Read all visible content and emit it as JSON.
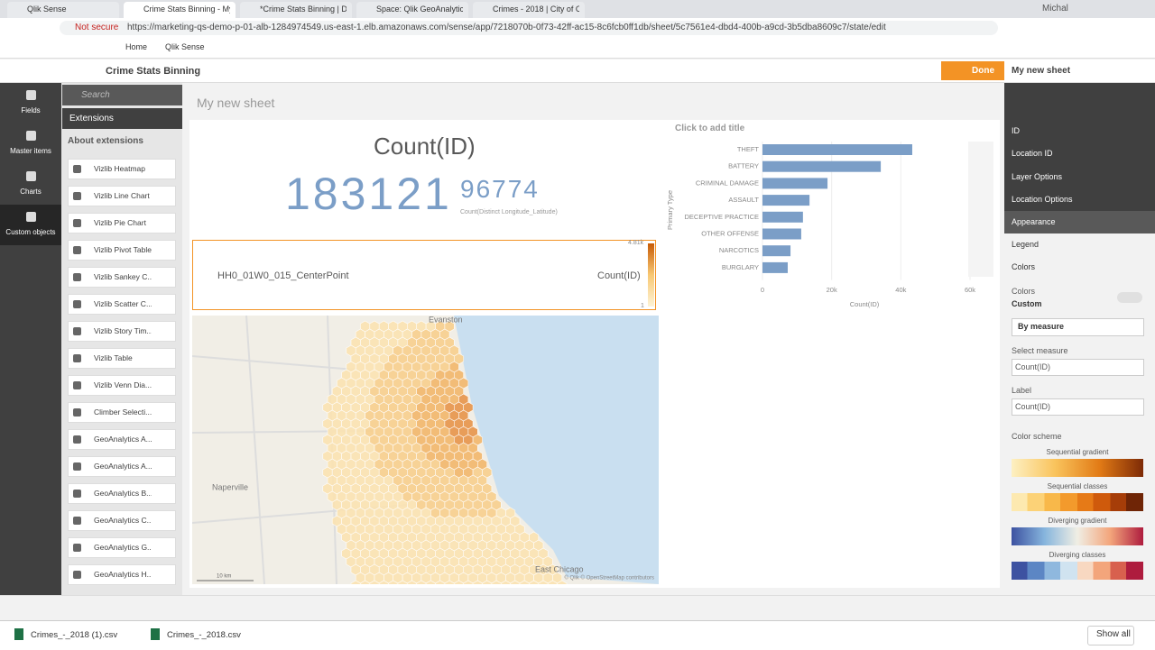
{
  "browser": {
    "tabs": [
      "Qlik Sense",
      "Crime Stats Binning - My",
      "*Crime Stats Binning | Da",
      "Space: Qlik GeoAnalytics",
      "Crimes - 2018 | City of Ch"
    ],
    "user": "Michal",
    "security": "Not secure",
    "url": "https://marketing-qs-demo-p-01-alb-1284974549.us-east-1.elb.amazonaws.com/sense/app/7218070b-0f73-42ff-ac15-8c6fcb0ff1db/sheet/5c7561e4-dbd4-400b-a9cd-3b5dba8609c7/state/edit",
    "bookmarks": [
      "Home",
      "Qlik Sense"
    ]
  },
  "toolbar": {
    "app_name": "Crime Stats Binning",
    "done": "Done",
    "sheet_name": "My new sheet"
  },
  "nav": [
    "Fields",
    "Master items",
    "Charts",
    "Custom objects"
  ],
  "assets": {
    "search": "Search",
    "section": "Extensions",
    "group": "About extensions",
    "items": [
      "Vizlib Heatmap",
      "Vizlib Line Chart",
      "Vizlib Pie Chart",
      "Vizlib Pivot Table",
      "Vizlib Sankey C...",
      "Vizlib Scatter C...",
      "Vizlib Story Tim...",
      "Vizlib Table",
      "Vizlib Venn Dia...",
      "Climber Selecti...",
      "GeoAnalytics A...",
      "GeoAnalytics A...",
      "GeoAnalytics B...",
      "GeoAnalytics C...",
      "GeoAnalytics G...",
      "GeoAnalytics H..."
    ]
  },
  "sheet": {
    "title": "My new sheet"
  },
  "kpi": {
    "title": "Count(ID)",
    "value": 183121,
    "secondary": 96774,
    "secondary_label": "Count(Distinct Longitude_Latitude)"
  },
  "map_legend": {
    "layer": "HH0_01W0_015_CenterPoint",
    "measure": "Count(ID)",
    "max": "4.81k",
    "min": "1"
  },
  "map": {
    "labels": [
      "Evanston",
      "Naperville",
      "East Chicago"
    ],
    "scale": "10 km",
    "attribution": "© Qlik © OpenStreetMap contributors"
  },
  "bar_chart": {
    "type": "bar",
    "title": "Click to add title",
    "y_label": "Primary Type",
    "x_label": "Count(ID)",
    "categories": [
      "THEFT",
      "BATTERY",
      "CRIMINAL DAMAGE",
      "ASSAULT",
      "DECEPTIVE PRACTICE",
      "OTHER OFFENSE",
      "NARCOTICS",
      "BURGLARY"
    ],
    "values": [
      43300,
      34200,
      18800,
      13600,
      11700,
      11200,
      8100,
      7300
    ],
    "color": "#7b9ec7",
    "xlim": [
      0,
      60000
    ],
    "xticks": [
      0,
      {
        "value": 20000,
        "label": "20k"
      },
      {
        "value": 40000,
        "label": "40k"
      },
      {
        "value": 60000,
        "label": "60k"
      }
    ],
    "grid": true
  },
  "properties": {
    "sections": [
      "ID",
      "Location ID",
      "Layer Options",
      "Location Options",
      "Appearance"
    ],
    "legend": "Legend",
    "colors_section": "Colors",
    "colors_label": "Colors",
    "colors_value": "Custom",
    "color_mode": "By measure",
    "select_measure_label": "Select measure",
    "select_measure": "Count(ID)",
    "label_label": "Label",
    "label_value": "Count(ID)",
    "scheme_label": "Color scheme",
    "schemes": [
      "Sequential gradient",
      "Sequential classes",
      "Diverging gradient",
      "Diverging classes"
    ]
  },
  "downloads": {
    "files": [
      "Crimes_-_2018 (1).csv",
      "Crimes_-_2018.csv"
    ],
    "show_all": "Show all"
  }
}
